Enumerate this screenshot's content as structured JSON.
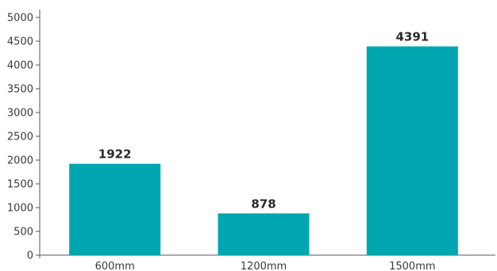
{
  "chart_data": {
    "type": "bar",
    "title": "",
    "xlabel": "",
    "ylabel": "",
    "categories": [
      "600mm",
      "1200mm",
      "1500mm"
    ],
    "values": [
      1922,
      878,
      4391
    ],
    "data_labels": [
      "1922",
      "878",
      "4391"
    ],
    "ylim": [
      0,
      5000
    ],
    "yticks": [
      0,
      500,
      1000,
      1500,
      2000,
      2500,
      3000,
      3500,
      4000,
      4500,
      5000
    ],
    "ytick_labels": [
      "0",
      "500",
      "1000",
      "1500",
      "2000",
      "2500",
      "3000",
      "3500",
      "4000",
      "4500",
      "5000"
    ],
    "grid": false,
    "legend": "none",
    "bar_color": "#00a7b0"
  }
}
